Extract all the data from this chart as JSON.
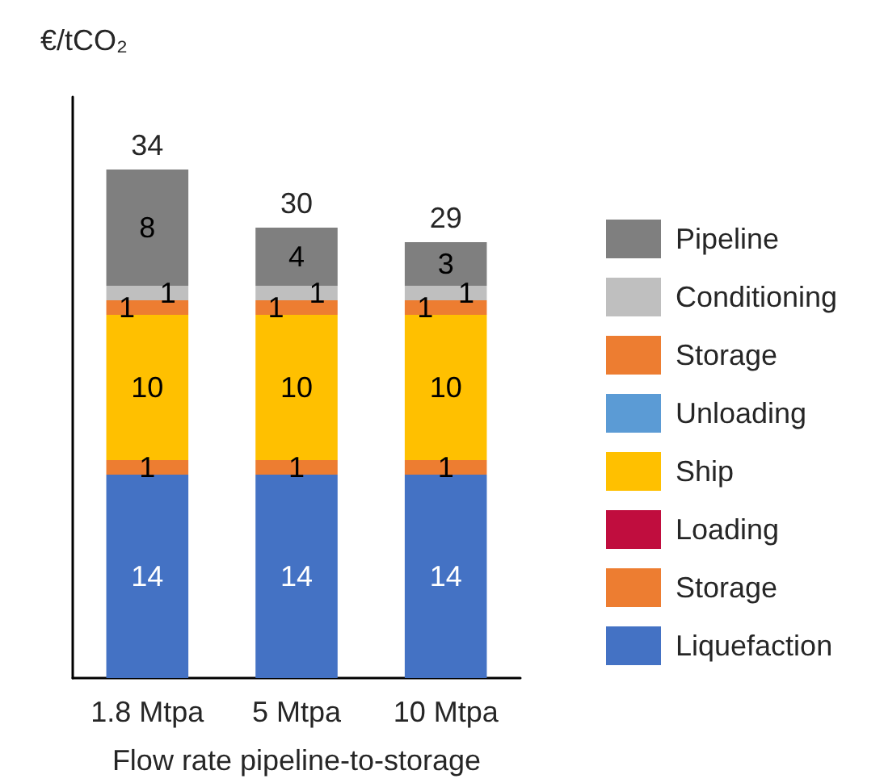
{
  "chart_data": {
    "type": "bar",
    "stacked": true,
    "ylabel": "€/tCO₂",
    "xlabel": "Flow rate pipeline-to-storage",
    "categories": [
      "1.8 Mtpa",
      "5 Mtpa",
      "10 Mtpa"
    ],
    "series": [
      {
        "name": "Liquefaction",
        "color": "#4472c4",
        "values": [
          14,
          14,
          14
        ]
      },
      {
        "name": "Storage",
        "color": "#ed7d31",
        "values": [
          1,
          1,
          1
        ]
      },
      {
        "name": "Loading",
        "color": "#c00d3e",
        "values": [
          null,
          null,
          null
        ]
      },
      {
        "name": "Ship",
        "color": "#ffc000",
        "values": [
          10,
          10,
          10
        ]
      },
      {
        "name": "Unloading",
        "color": "#5b9bd5",
        "values": [
          null,
          null,
          null
        ]
      },
      {
        "name": "Storage",
        "color": "#ed7d31",
        "values": [
          1,
          1,
          1
        ]
      },
      {
        "name": "Conditioning",
        "color": "#bfbfbf",
        "values": [
          1,
          1,
          1
        ]
      },
      {
        "name": "Pipeline",
        "color": "#7f7f7f",
        "values": [
          8,
          4,
          3
        ]
      }
    ],
    "totals": [
      "34",
      "30",
      "29"
    ],
    "data_labels": true,
    "legend": "right",
    "tick_labels": "x",
    "grid": false
  }
}
